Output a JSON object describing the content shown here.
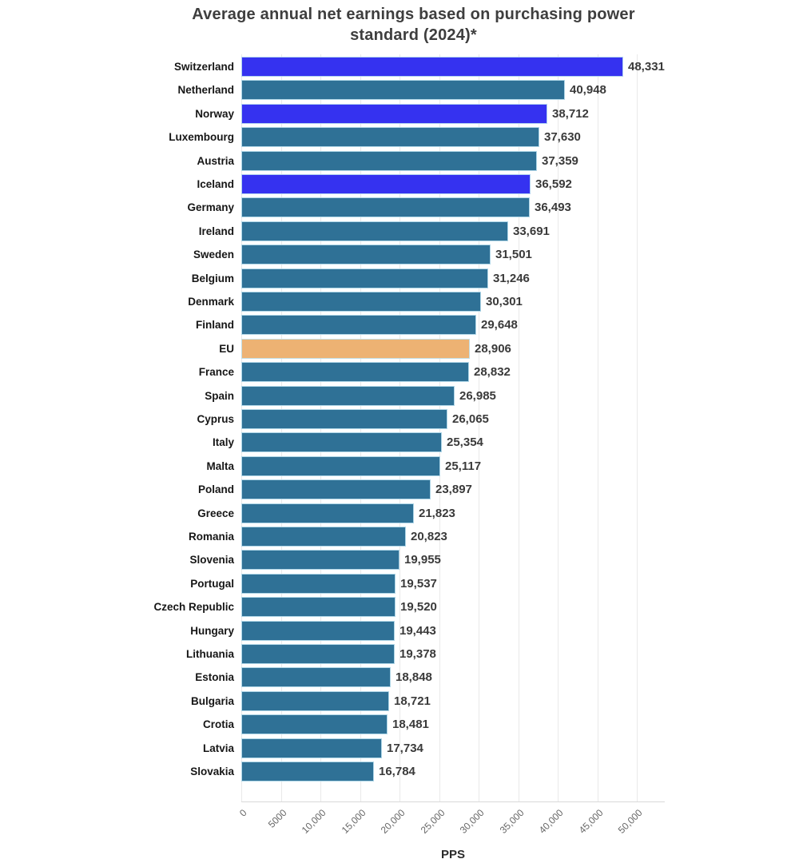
{
  "title": {
    "line1": "Average annual net earnings based on purchasing power",
    "line2": "standard (2024)*"
  },
  "chart_data": {
    "type": "bar",
    "orientation": "horizontal",
    "title": "Average annual net earnings based on purchasing power standard (2024)*",
    "xlabel": "PPS",
    "ylabel": "",
    "xlim": [
      0,
      53500
    ],
    "grid": "vertical",
    "legend": "none",
    "tick_values": [
      0,
      5000,
      10000,
      15000,
      20000,
      25000,
      30000,
      35000,
      40000,
      45000,
      50000
    ],
    "tick_labels": [
      "0",
      "5000",
      "10,000",
      "15,000",
      "20,000",
      "25,000",
      "30,000",
      "35,000",
      "40,000",
      "45,000",
      "50,000"
    ],
    "categories": [
      "Switzerland",
      "Netherland",
      "Norway",
      "Luxembourg",
      "Austria",
      "Iceland",
      "Germany",
      "Ireland",
      "Sweden",
      "Belgium",
      "Denmark",
      "Finland",
      "EU",
      "France",
      "Spain",
      "Cyprus",
      "Italy",
      "Malta",
      "Poland",
      "Greece",
      "Romania",
      "Slovenia",
      "Portugal",
      "Czech Republic",
      "Hungary",
      "Lithuania",
      "Estonia",
      "Bulgaria",
      "Crotia",
      "Latvia",
      "Slovakia"
    ],
    "values": [
      48331,
      40948,
      38712,
      37630,
      37359,
      36592,
      36493,
      33691,
      31501,
      31246,
      30301,
      29648,
      28906,
      28832,
      26985,
      26065,
      25354,
      25117,
      23897,
      21823,
      20823,
      19955,
      19537,
      19520,
      19443,
      19378,
      18848,
      18721,
      18481,
      17734,
      16784
    ],
    "highlighted_categories": [
      "Switzerland",
      "Norway",
      "Iceland"
    ],
    "eu_category": "EU",
    "colors": {
      "default": "#2F7196",
      "highlight": "#3532F0",
      "eu": "#EDB273",
      "gridline": "#e9e9e9",
      "value_label": "#3a3a3a",
      "category_label": "#161616"
    }
  }
}
